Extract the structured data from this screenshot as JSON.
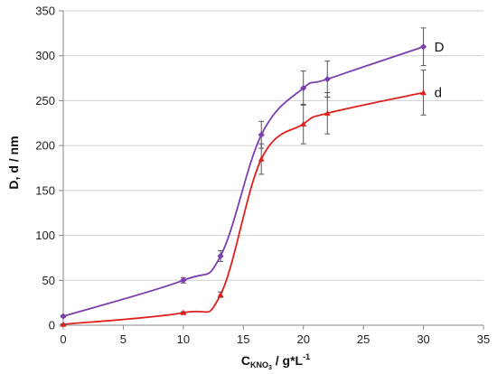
{
  "chart_data": {
    "type": "scatter",
    "xlabel": {
      "base": "C",
      "sub": "KNO",
      "sub2": "3",
      "rest": " / g*L",
      "sup": "-1"
    },
    "ylabel": "D, d / nm",
    "xlim": [
      0,
      35
    ],
    "ylim": [
      0,
      350
    ],
    "x_ticks": [
      "0",
      "5",
      "10",
      "15",
      "20",
      "25",
      "30",
      "35"
    ],
    "y_ticks": [
      "0",
      "50",
      "100",
      "150",
      "200",
      "250",
      "300",
      "350"
    ],
    "grid": "horizontal",
    "legend": "inline labels at series ends",
    "series": [
      {
        "name": "D",
        "color": "#7B3FB0",
        "marker": "diamond",
        "x": [
          0,
          10,
          13.1,
          16.5,
          20,
          22,
          30
        ],
        "y": [
          10,
          50,
          77,
          212,
          264,
          274,
          310
        ],
        "yerr": [
          1,
          3,
          6,
          15,
          19,
          20,
          21
        ]
      },
      {
        "name": "d",
        "color": "#E0201E",
        "marker": "triangle",
        "x": [
          0,
          10,
          13.1,
          16.5,
          20,
          22,
          30
        ],
        "y": [
          1,
          14,
          34,
          185,
          224,
          236,
          259
        ],
        "yerr": [
          0.5,
          1,
          3,
          17,
          22,
          23,
          25
        ]
      }
    ]
  }
}
